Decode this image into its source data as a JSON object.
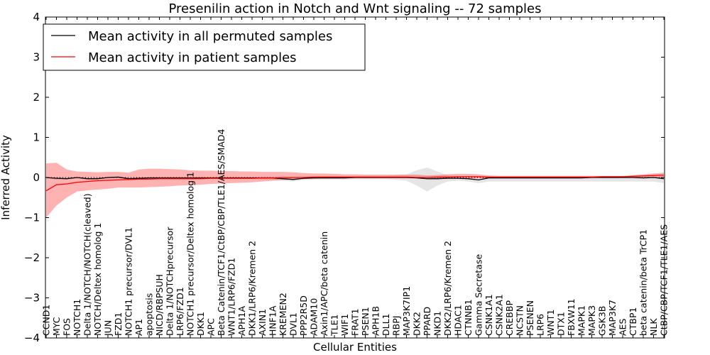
{
  "chart_data": {
    "type": "line",
    "title": "Presenilin action in Notch and Wnt signaling -- 72 samples",
    "xlabel": "Cellular Entities",
    "ylabel": "Inferred Activity",
    "ylim": [
      -4,
      4
    ],
    "yticks": [
      4,
      3,
      2,
      1,
      0,
      -1,
      -2,
      -3,
      -4
    ],
    "ytick_labels": [
      "4",
      "3",
      "2",
      "1",
      "0",
      "−1",
      "−2",
      "−3",
      "−4"
    ],
    "legend_position": "top-left",
    "categories": [
      "CCND1",
      "MYC",
      "FOS",
      "NOTCH1",
      "Delta 1/NOTCH/NOTCH(cleaved)",
      "NOTCH/Deltex homolog 1",
      "JUN",
      "FZD1",
      "NOTCH1 precursor/DVL1",
      "AP1",
      "apoptosis",
      "NICD/RBPSUH",
      "Delta 1/NOTCHprecursor",
      "LRP6/FZD1",
      "NOTCH1 precursor/Deltex homolog 1",
      "DKK1",
      "APC",
      "Beta Catenin/TCF1/CtBP/CBP/TLE1/AES/SMAD4",
      "WNT1/LRP6/FZD1",
      "APH1A",
      "DKK1/LRP6/Kremen 2",
      "AXIN1",
      "HNF1A",
      "KREMEN2",
      "DVL1",
      "PPP2R5D",
      "ADAM10",
      "Axin1/APC/beta catenin",
      "TLE1",
      "WIF1",
      "FRAT1",
      "PSEN1",
      "APH1B",
      "DLL1",
      "RBPJ",
      "MAP3K7IP1",
      "DKK2",
      "PPARD",
      "NKD1",
      "DKK2/LRP6/Kremen 2",
      "HDAC1",
      "CTNNB1",
      "Gamma Secretase",
      "CSNK1A1",
      "CSNK2A1",
      "CREBBP",
      "NCSTN",
      "PSENEN",
      "LRP6",
      "WNT1",
      "DTX1",
      "FBXW11",
      "MAPK1",
      "MAPK3",
      "GSK3B",
      "MAP3K7",
      "AES",
      "CTBP1",
      "beta catenin/beta TrCP1",
      "NLK",
      "CtBP/CBP/TCF1/TLE1/AES"
    ],
    "series": [
      {
        "name": "Mean activity in all permuted samples",
        "color": "#000000",
        "values": [
          0.0,
          -0.02,
          -0.03,
          0.0,
          -0.03,
          -0.03,
          0.0,
          0.01,
          -0.03,
          -0.02,
          -0.01,
          -0.01,
          -0.01,
          -0.01,
          -0.01,
          -0.01,
          -0.01,
          -0.01,
          -0.01,
          -0.01,
          -0.01,
          -0.01,
          -0.01,
          -0.03,
          -0.05,
          -0.02,
          -0.01,
          -0.01,
          -0.01,
          -0.01,
          0.0,
          0.0,
          0.0,
          0.0,
          0.0,
          0.0,
          -0.01,
          -0.03,
          -0.03,
          -0.02,
          -0.02,
          -0.03,
          -0.06,
          -0.01,
          -0.01,
          -0.01,
          -0.01,
          -0.01,
          -0.01,
          -0.01,
          -0.01,
          -0.01,
          -0.01,
          0.0,
          0.0,
          0.0,
          0.0,
          0.0,
          -0.01,
          0.0,
          -0.03
        ],
        "band_upper": [
          0.01,
          0.0,
          0.0,
          0.01,
          0.0,
          0.0,
          0.01,
          0.02,
          0.0,
          0.0,
          0.0,
          0.0,
          0.0,
          0.0,
          0.0,
          0.0,
          0.0,
          0.0,
          0.0,
          0.0,
          0.0,
          0.0,
          0.0,
          0.0,
          0.0,
          0.0,
          0.02,
          0.03,
          0.03,
          0.03,
          0.03,
          0.04,
          0.04,
          0.04,
          0.06,
          0.08,
          0.18,
          0.25,
          0.15,
          0.06,
          0.03,
          0.03,
          0.03,
          0.03,
          0.03,
          0.03,
          0.03,
          0.03,
          0.03,
          0.03,
          0.03,
          0.03,
          0.03,
          0.03,
          0.03,
          0.03,
          0.03,
          0.03,
          0.03,
          0.03,
          0.03
        ],
        "band_lower": [
          -0.02,
          -0.05,
          -0.05,
          -0.02,
          -0.05,
          -0.05,
          -0.02,
          -0.01,
          -0.05,
          -0.05,
          -0.04,
          -0.04,
          -0.04,
          -0.04,
          -0.04,
          -0.04,
          -0.04,
          -0.04,
          -0.04,
          -0.04,
          -0.04,
          -0.05,
          -0.06,
          -0.08,
          -0.1,
          -0.06,
          -0.05,
          -0.05,
          -0.05,
          -0.05,
          -0.04,
          -0.04,
          -0.04,
          -0.04,
          -0.06,
          -0.08,
          -0.2,
          -0.35,
          -0.2,
          -0.1,
          -0.08,
          -0.1,
          -0.14,
          -0.1,
          -0.1,
          -0.1,
          -0.1,
          -0.1,
          -0.1,
          -0.1,
          -0.1,
          -0.1,
          -0.1,
          -0.1,
          -0.1,
          -0.1,
          -0.1,
          -0.1,
          -0.1,
          -0.1,
          -0.14
        ]
      },
      {
        "name": "Mean activity in patient samples",
        "color": "#ff0000",
        "values": [
          -0.33,
          -0.18,
          -0.16,
          -0.12,
          -0.1,
          -0.08,
          -0.07,
          -0.06,
          -0.05,
          -0.04,
          -0.04,
          -0.03,
          -0.03,
          -0.03,
          -0.03,
          -0.03,
          -0.02,
          -0.02,
          -0.02,
          -0.02,
          -0.02,
          -0.01,
          -0.01,
          0.0,
          0.0,
          0.0,
          0.01,
          0.01,
          0.01,
          0.01,
          0.01,
          0.01,
          0.01,
          0.01,
          0.01,
          0.01,
          0.0,
          0.0,
          0.01,
          0.01,
          0.02,
          0.02,
          0.02,
          0.01,
          0.01,
          0.01,
          0.01,
          0.01,
          0.01,
          0.01,
          0.01,
          0.01,
          0.01,
          0.01,
          0.02,
          0.02,
          0.02,
          0.03,
          0.04,
          0.05,
          0.06
        ],
        "band_upper": [
          0.35,
          0.37,
          0.2,
          0.15,
          0.14,
          0.13,
          0.14,
          0.14,
          0.12,
          0.2,
          0.22,
          0.22,
          0.21,
          0.2,
          0.18,
          0.17,
          0.17,
          0.16,
          0.16,
          0.15,
          0.15,
          0.14,
          0.14,
          0.14,
          0.13,
          0.11,
          0.1,
          0.1,
          0.09,
          0.08,
          0.08,
          0.07,
          0.07,
          0.07,
          0.07,
          0.07,
          0.07,
          0.05,
          0.06,
          0.08,
          0.09,
          0.09,
          0.08,
          0.05,
          0.04,
          0.04,
          0.04,
          0.04,
          0.04,
          0.04,
          0.04,
          0.04,
          0.04,
          0.04,
          0.04,
          0.04,
          0.04,
          0.06,
          0.08,
          0.1,
          0.12
        ],
        "band_lower": [
          -1.0,
          -0.7,
          -0.5,
          -0.35,
          -0.32,
          -0.3,
          -0.28,
          -0.25,
          -0.25,
          -0.25,
          -0.24,
          -0.23,
          -0.22,
          -0.2,
          -0.19,
          -0.18,
          -0.16,
          -0.15,
          -0.14,
          -0.13,
          -0.12,
          -0.1,
          -0.08,
          -0.06,
          -0.05,
          -0.04,
          -0.03,
          -0.02,
          -0.02,
          -0.02,
          -0.02,
          -0.02,
          -0.02,
          -0.02,
          -0.02,
          -0.02,
          -0.02,
          -0.03,
          -0.03,
          -0.03,
          -0.02,
          -0.02,
          -0.02,
          -0.02,
          -0.02,
          -0.02,
          -0.02,
          -0.02,
          -0.02,
          -0.02,
          -0.02,
          -0.02,
          -0.02,
          -0.01,
          -0.01,
          0.0,
          0.0,
          0.0,
          0.0,
          0.0,
          0.0
        ]
      }
    ],
    "zero_reference_line": 0
  }
}
